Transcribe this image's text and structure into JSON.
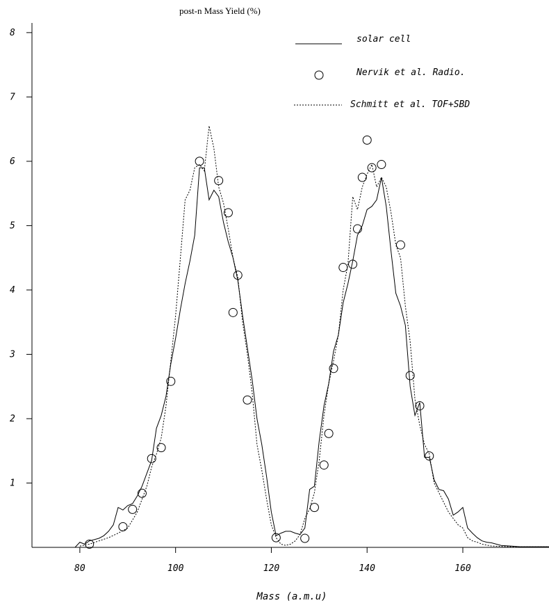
{
  "chart_data": {
    "type": "line",
    "title": "",
    "ylabel": "post-n Mass Yield (%)",
    "xlabel": "Mass (a.m.u)",
    "xlim": [
      70,
      178
    ],
    "ylim": [
      0,
      8.15
    ],
    "x_ticks": [
      80,
      100,
      120,
      140,
      160
    ],
    "y_ticks": [
      1,
      2,
      3,
      4,
      5,
      6,
      7,
      8
    ],
    "grid": false,
    "legend_position": "top-right",
    "series": [
      {
        "name": "solar cell",
        "style": "solid",
        "points": [
          [
            70,
            0
          ],
          [
            79,
            0
          ],
          [
            80,
            0.08
          ],
          [
            81,
            0.05
          ],
          [
            82,
            0.1
          ],
          [
            83,
            0.12
          ],
          [
            84,
            0.14
          ],
          [
            85,
            0.18
          ],
          [
            86,
            0.25
          ],
          [
            87,
            0.35
          ],
          [
            88,
            0.62
          ],
          [
            89,
            0.58
          ],
          [
            90,
            0.65
          ],
          [
            91,
            0.68
          ],
          [
            92,
            0.8
          ],
          [
            93,
            0.95
          ],
          [
            94,
            1.15
          ],
          [
            95,
            1.35
          ],
          [
            96,
            1.85
          ],
          [
            97,
            2.05
          ],
          [
            98,
            2.35
          ],
          [
            99,
            2.85
          ],
          [
            100,
            3.25
          ],
          [
            101,
            3.7
          ],
          [
            102,
            4.1
          ],
          [
            103,
            4.45
          ],
          [
            104,
            4.85
          ],
          [
            105,
            5.9
          ],
          [
            106,
            5.9
          ],
          [
            107,
            5.4
          ],
          [
            108,
            5.55
          ],
          [
            109,
            5.45
          ],
          [
            110,
            5.05
          ],
          [
            111,
            4.75
          ],
          [
            112,
            4.5
          ],
          [
            113,
            4.15
          ],
          [
            114,
            3.6
          ],
          [
            115,
            3.1
          ],
          [
            116,
            2.6
          ],
          [
            117,
            2.0
          ],
          [
            118,
            1.6
          ],
          [
            119,
            1.1
          ],
          [
            120,
            0.55
          ],
          [
            121,
            0.18
          ],
          [
            122,
            0.22
          ],
          [
            123,
            0.25
          ],
          [
            124,
            0.25
          ],
          [
            125,
            0.22
          ],
          [
            126,
            0.2
          ],
          [
            127,
            0.3
          ],
          [
            128,
            0.9
          ],
          [
            129,
            0.95
          ],
          [
            130,
            1.65
          ],
          [
            131,
            2.2
          ],
          [
            132,
            2.55
          ],
          [
            133,
            3.05
          ],
          [
            134,
            3.3
          ],
          [
            135,
            3.8
          ],
          [
            136,
            4.1
          ],
          [
            137,
            4.45
          ],
          [
            138,
            4.85
          ],
          [
            139,
            5.0
          ],
          [
            140,
            5.25
          ],
          [
            141,
            5.3
          ],
          [
            142,
            5.4
          ],
          [
            143,
            5.75
          ],
          [
            144,
            5.3
          ],
          [
            145,
            4.6
          ],
          [
            146,
            3.95
          ],
          [
            147,
            3.75
          ],
          [
            148,
            3.45
          ],
          [
            149,
            2.5
          ],
          [
            150,
            2.05
          ],
          [
            151,
            2.25
          ],
          [
            152,
            1.4
          ],
          [
            153,
            1.4
          ],
          [
            154,
            1.05
          ],
          [
            155,
            0.9
          ],
          [
            156,
            0.88
          ],
          [
            157,
            0.75
          ],
          [
            158,
            0.5
          ],
          [
            159,
            0.55
          ],
          [
            160,
            0.62
          ],
          [
            161,
            0.3
          ],
          [
            162,
            0.22
          ],
          [
            163,
            0.15
          ],
          [
            164,
            0.1
          ],
          [
            165,
            0.08
          ],
          [
            166,
            0.07
          ],
          [
            167,
            0.05
          ],
          [
            168,
            0.03
          ],
          [
            170,
            0.02
          ],
          [
            172,
            0.01
          ],
          [
            178,
            0.01
          ]
        ]
      },
      {
        "name": "Nervik et al. Radio.",
        "style": "circles",
        "points": [
          [
            82,
            0.05
          ],
          [
            89,
            0.32
          ],
          [
            91,
            0.59
          ],
          [
            93,
            0.84
          ],
          [
            95,
            1.38
          ],
          [
            97,
            1.55
          ],
          [
            99,
            2.58
          ],
          [
            105,
            6.0
          ],
          [
            109,
            5.7
          ],
          [
            111,
            5.2
          ],
          [
            112,
            3.65
          ],
          [
            113,
            4.23
          ],
          [
            115,
            2.29
          ],
          [
            121,
            0.15
          ],
          [
            127,
            0.14
          ],
          [
            129,
            0.62
          ],
          [
            131,
            1.28
          ],
          [
            132,
            1.77
          ],
          [
            133,
            2.78
          ],
          [
            135,
            4.35
          ],
          [
            137,
            4.4
          ],
          [
            138,
            4.95
          ],
          [
            139,
            5.75
          ],
          [
            140,
            6.33
          ],
          [
            141,
            5.9
          ],
          [
            143,
            5.95
          ],
          [
            147,
            4.7
          ],
          [
            149,
            2.67
          ],
          [
            151,
            2.2
          ],
          [
            153,
            1.42
          ]
        ]
      },
      {
        "name": "Schmitt et al. TOF+SBD",
        "style": "dotted",
        "points": [
          [
            80,
            0.02
          ],
          [
            82,
            0.05
          ],
          [
            84,
            0.1
          ],
          [
            86,
            0.15
          ],
          [
            88,
            0.22
          ],
          [
            90,
            0.3
          ],
          [
            92,
            0.55
          ],
          [
            94,
            0.95
          ],
          [
            95,
            1.25
          ],
          [
            96,
            1.45
          ],
          [
            97,
            1.7
          ],
          [
            98,
            2.2
          ],
          [
            99,
            2.9
          ],
          [
            100,
            3.6
          ],
          [
            101,
            4.5
          ],
          [
            102,
            5.4
          ],
          [
            103,
            5.55
          ],
          [
            104,
            5.9
          ],
          [
            105,
            5.95
          ],
          [
            106,
            5.85
          ],
          [
            107,
            6.55
          ],
          [
            108,
            6.2
          ],
          [
            109,
            5.6
          ],
          [
            110,
            5.35
          ],
          [
            111,
            4.95
          ],
          [
            112,
            4.5
          ],
          [
            113,
            4.2
          ],
          [
            114,
            3.5
          ],
          [
            115,
            3.0
          ],
          [
            116,
            2.4
          ],
          [
            117,
            1.6
          ],
          [
            118,
            1.2
          ],
          [
            119,
            0.75
          ],
          [
            120,
            0.35
          ],
          [
            121,
            0.15
          ],
          [
            122,
            0.05
          ],
          [
            123,
            0.03
          ],
          [
            124,
            0.05
          ],
          [
            125,
            0.1
          ],
          [
            126,
            0.2
          ],
          [
            127,
            0.45
          ],
          [
            128,
            0.6
          ],
          [
            129,
            0.85
          ],
          [
            130,
            1.35
          ],
          [
            131,
            2.05
          ],
          [
            132,
            2.55
          ],
          [
            133,
            2.9
          ],
          [
            134,
            3.3
          ],
          [
            135,
            4.0
          ],
          [
            136,
            4.4
          ],
          [
            137,
            5.45
          ],
          [
            138,
            5.25
          ],
          [
            139,
            5.6
          ],
          [
            140,
            5.8
          ],
          [
            141,
            5.95
          ],
          [
            142,
            5.6
          ],
          [
            143,
            5.75
          ],
          [
            144,
            5.6
          ],
          [
            145,
            5.2
          ],
          [
            146,
            4.7
          ],
          [
            147,
            4.5
          ],
          [
            148,
            3.75
          ],
          [
            149,
            3.2
          ],
          [
            150,
            2.3
          ],
          [
            151,
            1.9
          ],
          [
            152,
            1.6
          ],
          [
            153,
            1.45
          ],
          [
            154,
            1.0
          ],
          [
            155,
            0.85
          ],
          [
            156,
            0.7
          ],
          [
            157,
            0.55
          ],
          [
            158,
            0.45
          ],
          [
            159,
            0.35
          ],
          [
            160,
            0.3
          ],
          [
            161,
            0.15
          ],
          [
            162,
            0.1
          ],
          [
            163,
            0.08
          ],
          [
            164,
            0.05
          ],
          [
            166,
            0.02
          ],
          [
            170,
            0.01
          ],
          [
            178,
            0.01
          ]
        ]
      }
    ]
  }
}
